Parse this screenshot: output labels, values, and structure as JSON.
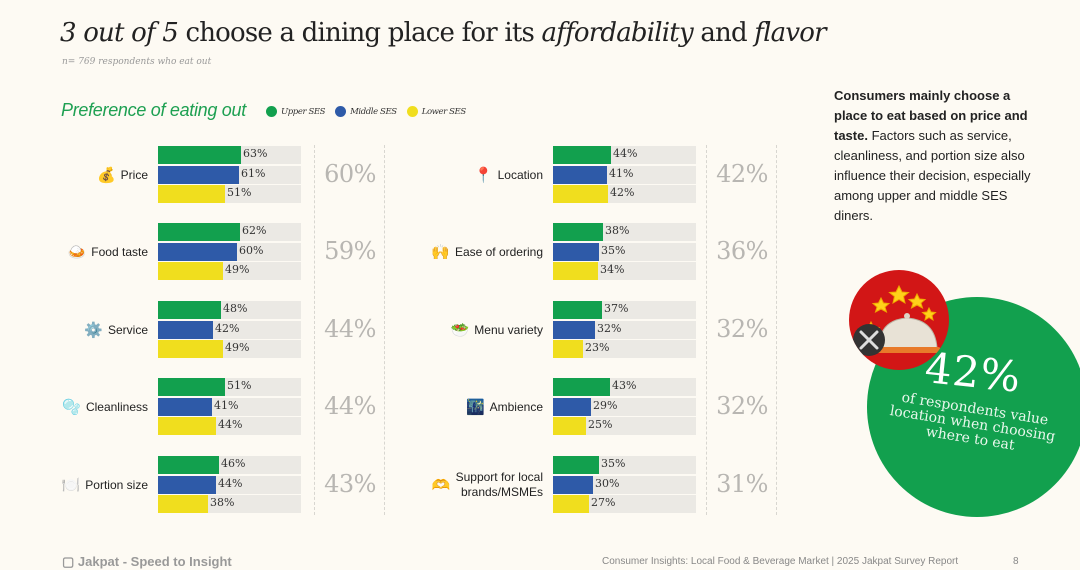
{
  "title": {
    "part1_italic": "3 out of 5",
    "part2": " choose a dining place for its ",
    "part3_italic": "affordability",
    "part4": " and ",
    "part5_italic": "flavor"
  },
  "subtitle": "n= 769 respondents who eat out",
  "section_title": "Preference of eating out",
  "legend": [
    {
      "label": "Upper SES",
      "color": "#12a04e"
    },
    {
      "label": "Middle SES",
      "color": "#2e5aa8"
    },
    {
      "label": "Lower SES",
      "color": "#f0de1e"
    }
  ],
  "chart_data": {
    "type": "bar",
    "orientation": "horizontal",
    "title": "Preference of eating out",
    "series_names": [
      "Upper SES",
      "Middle SES",
      "Lower SES"
    ],
    "colors": [
      "#12a04e",
      "#2e5aa8",
      "#f0de1e"
    ],
    "unit": "%",
    "categories": [
      {
        "label": "Price",
        "icon": "money-bag-icon",
        "glyph": "💰",
        "values": [
          63,
          61,
          51
        ],
        "overall": "60%"
      },
      {
        "label": "Food taste",
        "icon": "food-plate-icon",
        "glyph": "🍛",
        "values": [
          62,
          60,
          49
        ],
        "overall": "59%"
      },
      {
        "label": "Service",
        "icon": "gear-icon",
        "glyph": "⚙️",
        "values": [
          48,
          42,
          49
        ],
        "overall": "44%"
      },
      {
        "label": "Cleanliness",
        "icon": "bubbles-icon",
        "glyph": "🫧",
        "values": [
          51,
          41,
          44
        ],
        "overall": "44%"
      },
      {
        "label": "Portion size",
        "icon": "plate-cutlery-icon",
        "glyph": "🍽️",
        "values": [
          46,
          44,
          38
        ],
        "overall": "43%"
      },
      {
        "label": "Location",
        "icon": "pin-icon",
        "glyph": "📍",
        "values": [
          44,
          41,
          42
        ],
        "overall": "42%"
      },
      {
        "label": "Ease of ordering",
        "icon": "raised-hands-icon",
        "glyph": "🙌",
        "values": [
          38,
          35,
          34
        ],
        "overall": "36%"
      },
      {
        "label": "Menu variety",
        "icon": "salad-icon",
        "glyph": "🥗",
        "values": [
          37,
          32,
          23
        ],
        "overall": "32%"
      },
      {
        "label": "Ambience",
        "icon": "night-city-icon",
        "glyph": "🌃",
        "values": [
          43,
          29,
          25
        ],
        "overall": "32%"
      },
      {
        "label": "Support for local brands/MSMEs",
        "label_lines": [
          "Support for local",
          "brands/MSMEs"
        ],
        "icon": "heart-hands-icon",
        "glyph": "🫶",
        "values": [
          35,
          30,
          27
        ],
        "overall": "31%"
      }
    ]
  },
  "note": {
    "bold": "Consumers mainly choose a place to eat based on price and taste.",
    "normal": " Factors such as service, cleanliness, and portion size also influence their decision, especially among upper and middle SES diners."
  },
  "highlight": {
    "value": "42%",
    "text": "of respondents value location when choosing where to eat",
    "circle_color": "#12a04e"
  },
  "footer": {
    "brand": "Jakpat - Speed to Insight",
    "report": "Consumer Insights: Local Food & Beverage Market | 2025 Jakpat Survey Report",
    "page": "8"
  }
}
